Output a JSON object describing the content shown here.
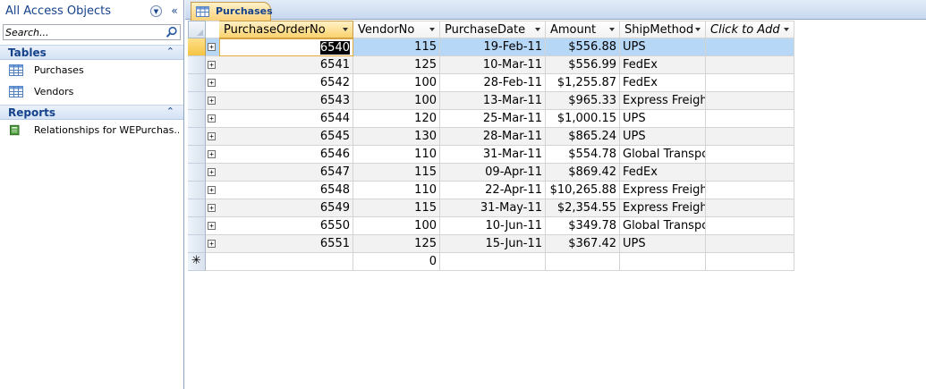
{
  "nav": {
    "title": "All Access Objects",
    "search_placeholder": "Search...",
    "groups": [
      {
        "label": "Tables",
        "items": [
          "Purchases",
          "Vendors"
        ]
      },
      {
        "label": "Reports",
        "items": [
          "Relationships for WEPurchas..."
        ]
      }
    ]
  },
  "tab": {
    "label": "Purchases"
  },
  "datasheet": {
    "columns": [
      "PurchaseOrderNo",
      "VendorNo",
      "PurchaseDate",
      "Amount",
      "ShipMethod",
      "Click to Add"
    ],
    "rows": [
      [
        "6540",
        "115",
        "19-Feb-11",
        "$556.88",
        "UPS"
      ],
      [
        "6541",
        "125",
        "10-Mar-11",
        "$556.99",
        "FedEx"
      ],
      [
        "6542",
        "100",
        "28-Feb-11",
        "$1,255.87",
        "FedEx"
      ],
      [
        "6543",
        "100",
        "13-Mar-11",
        "$965.33",
        "Express Freight"
      ],
      [
        "6544",
        "120",
        "25-Mar-11",
        "$1,000.15",
        "UPS"
      ],
      [
        "6545",
        "130",
        "28-Mar-11",
        "$865.24",
        "UPS"
      ],
      [
        "6546",
        "110",
        "31-Mar-11",
        "$554.78",
        "Global Transport"
      ],
      [
        "6547",
        "115",
        "09-Apr-11",
        "$869.42",
        "FedEx"
      ],
      [
        "6548",
        "110",
        "22-Apr-11",
        "$10,265.88",
        "Express Freight"
      ],
      [
        "6549",
        "115",
        "31-May-11",
        "$2,354.55",
        "Express Freight"
      ],
      [
        "6550",
        "100",
        "10-Jun-11",
        "$349.78",
        "Global Transport"
      ],
      [
        "6551",
        "125",
        "15-Jun-11",
        "$367.42",
        "UPS"
      ]
    ],
    "new_row_symbol": "✳",
    "new_row_vendor_default": "0",
    "selected_row_index": 0
  },
  "colors": {
    "active_header": "#fbd36e",
    "selected_row": "#b7d7f7",
    "alt_row": "#f2f2f2",
    "nav_text": "#15428b"
  }
}
